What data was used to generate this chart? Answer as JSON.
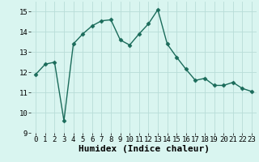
{
  "x": [
    0,
    1,
    2,
    3,
    4,
    5,
    6,
    7,
    8,
    9,
    10,
    11,
    12,
    13,
    14,
    15,
    16,
    17,
    18,
    19,
    20,
    21,
    22,
    23
  ],
  "y": [
    11.9,
    12.4,
    12.5,
    9.6,
    13.4,
    13.9,
    14.3,
    14.55,
    14.6,
    13.6,
    13.35,
    13.9,
    14.4,
    15.1,
    13.4,
    12.75,
    12.15,
    11.6,
    11.7,
    11.35,
    11.35,
    11.5,
    11.2,
    11.05
  ],
  "line_color": "#1a6b5a",
  "marker": "D",
  "marker_size": 2.5,
  "bg_color": "#d9f5f0",
  "grid_color": "#b8ddd8",
  "xlabel": "Humidex (Indice chaleur)",
  "ylim": [
    9,
    15.5
  ],
  "xlim": [
    -0.5,
    23.5
  ],
  "yticks": [
    9,
    10,
    11,
    12,
    13,
    14,
    15
  ],
  "xticks": [
    0,
    1,
    2,
    3,
    4,
    5,
    6,
    7,
    8,
    9,
    10,
    11,
    12,
    13,
    14,
    15,
    16,
    17,
    18,
    19,
    20,
    21,
    22,
    23
  ],
  "tick_fontsize": 6.5,
  "xlabel_fontsize": 8,
  "line_width": 1.0
}
